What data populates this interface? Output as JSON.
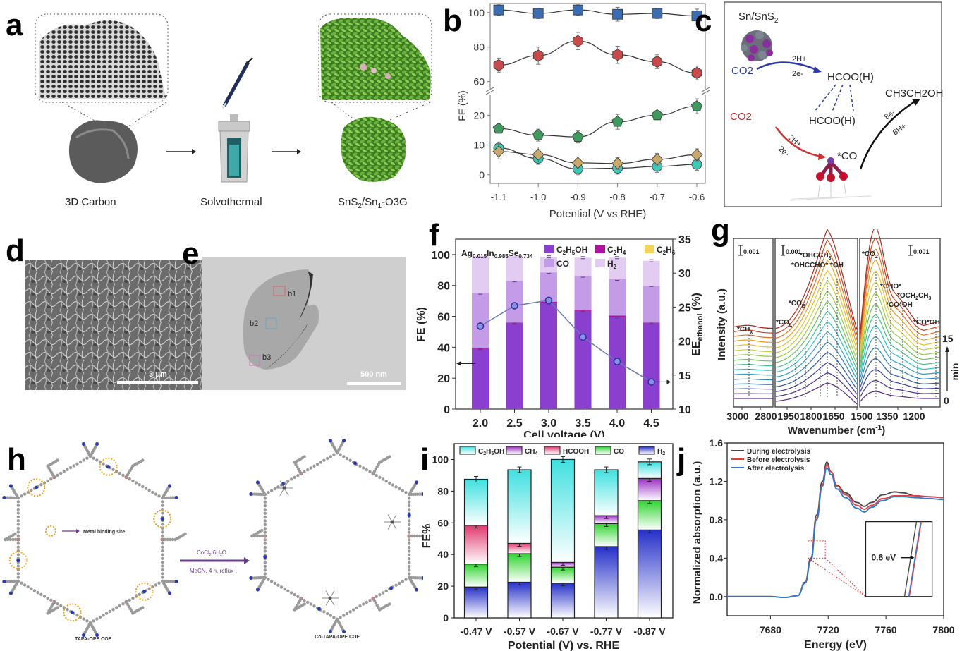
{
  "panels": {
    "a": {
      "label": "a",
      "steps": [
        "3D Carbon",
        "Solvothermal",
        "SnS2/Sn1-O3G"
      ],
      "step3_parts": {
        "pre": "SnS",
        "sub1": "2",
        "mid": "/Sn",
        "sub2": "1",
        "post": "-O3G"
      }
    },
    "c": {
      "label": "c",
      "catalyst": {
        "pre": "Sn/SnS",
        "sub": "2"
      },
      "labels": {
        "co2_top": "CO2",
        "h_top": "2H+",
        "e_top": "2e-",
        "hcooh_top": "HCOO(H)",
        "ethanol": "CH3CH2OH",
        "co2_bottom": "CO2",
        "hcooh_mid": "HCOO(H)",
        "e8": "8e-",
        "h8": "8H+",
        "h_bottom": "2H+",
        "e_bottom": "2e-",
        "co_star": "*CO"
      }
    },
    "d": {
      "label": "d",
      "scale_bar": "3 μm"
    },
    "e": {
      "label": "e",
      "scale_bar": "500 nm",
      "regions": [
        "b1",
        "b2",
        "b3"
      ]
    },
    "h": {
      "label": "h",
      "legend": "Metal binding site",
      "reagent": "CoCl2.6H2O",
      "reagent_parts": {
        "pre": "CoCl",
        "sub1": "2",
        "mid": ".6H",
        "sub2": "2",
        "post": "O"
      },
      "conditions": "MeCN, 4 h, reflux",
      "left_name": "TAPA-OPE COF",
      "right_name": "Co-TAPA-OPE COF"
    }
  },
  "chart_data": [
    {
      "panel": "b",
      "type": "line",
      "label": "b",
      "xlabel": "Potential (V vs RHE)",
      "ylabel": "FE (%)",
      "x": [
        -1.1,
        -1.0,
        -0.9,
        -0.8,
        -0.7,
        -0.6
      ],
      "x_ticks": [
        "-1.1",
        "-1.0",
        "-0.9",
        "-0.8",
        "-0.7",
        "-0.6"
      ],
      "xlim": [
        -1.14,
        -0.56
      ],
      "y_ticks_lower": [
        "0",
        "10",
        "20"
      ],
      "y_ticks_upper": [
        "60",
        "80",
        "100"
      ],
      "ylim_lower": [
        -1,
        26
      ],
      "ylim_upper": [
        57,
        104
      ],
      "axis_break": true,
      "series": [
        {
          "name": "square",
          "marker": "square",
          "color": "#3b6db3",
          "values": [
            101.5,
            99.5,
            101.5,
            99,
            99.5,
            98
          ],
          "errors": [
            3,
            3,
            3,
            4,
            3,
            4
          ],
          "segment": "upper"
        },
        {
          "name": "hexagon",
          "marker": "hexagon",
          "color": "#c84a4a",
          "values": [
            69.5,
            75,
            83.5,
            75.5,
            71.5,
            65
          ],
          "errors": [
            4,
            5,
            5,
            5,
            4,
            4
          ],
          "segment": "upper"
        },
        {
          "name": "pentagon",
          "marker": "pentagon",
          "color": "#3e9a5e",
          "values": [
            15.5,
            13.3,
            12.7,
            17.8,
            20,
            23
          ],
          "errors": [
            1.5,
            2,
            2,
            2.5,
            1.5,
            2.5
          ],
          "segment": "lower"
        },
        {
          "name": "circle",
          "marker": "circle",
          "color": "#3cc9b8",
          "values": [
            9,
            5.5,
            2,
            2.2,
            2.8,
            3.5
          ],
          "errors": [
            2,
            2,
            2,
            2,
            2,
            2
          ],
          "segment": "lower"
        },
        {
          "name": "diamond",
          "marker": "diamond",
          "color": "#c8a96a",
          "values": [
            7.8,
            6.8,
            4,
            3.8,
            5.2,
            6.7
          ],
          "errors": [
            2.5,
            2.5,
            2,
            2,
            2,
            2
          ],
          "segment": "lower"
        }
      ]
    },
    {
      "panel": "f",
      "type": "bar",
      "label": "f",
      "stacked": true,
      "annotation": "Ag0.015In0.985Se0.734",
      "annotation_parts": {
        "el1": "Ag",
        "s1": "0.015",
        "el2": "In",
        "s2": "0.985",
        "el3": "Se",
        "s3": "0.734"
      },
      "xlabel": "Cell voltage (V)",
      "ylabel": "FE (%)",
      "ylabel_right": "EEethanol (%)",
      "ylabel_right_parts": {
        "pre": "EE",
        "sub": "ethanol",
        "post": " (%)"
      },
      "categories": [
        "2.0",
        "2.5",
        "3.0",
        "3.5",
        "4.0",
        "4.5"
      ],
      "ylim": [
        0,
        110
      ],
      "y_ticks": [
        "0",
        "20",
        "40",
        "60",
        "80",
        "100"
      ],
      "ylim_right": [
        10,
        35
      ],
      "y_ticks_right": [
        "10",
        "15",
        "20",
        "25",
        "30",
        "35"
      ],
      "legend": [
        {
          "name": "C2H5OH",
          "parts": [
            "C",
            "2",
            "H",
            "5",
            "OH"
          ],
          "color": "#8a3fcf"
        },
        {
          "name": "C2H4",
          "parts": [
            "C",
            "2",
            "H",
            "4",
            ""
          ],
          "color": "#b0119f"
        },
        {
          "name": "C2H6",
          "parts": [
            "C",
            "2",
            "H",
            "6",
            ""
          ],
          "color": "#f3d35a"
        },
        {
          "name": "CO",
          "parts": [
            "CO",
            "",
            "",
            "",
            ""
          ],
          "color": "#c39be6"
        },
        {
          "name": "H2",
          "parts": [
            "H",
            "2",
            "",
            "",
            ""
          ],
          "color": "#e3ccf2"
        }
      ],
      "series": [
        {
          "name": "C2H5OH",
          "color": "#8a3fcf",
          "values": [
            39,
            55.5,
            68.5,
            63.5,
            59.5,
            55.5
          ]
        },
        {
          "name": "C2H4",
          "color": "#b0119f",
          "values": [
            0.5,
            0.5,
            1,
            0.5,
            1,
            0.5
          ]
        },
        {
          "name": "C2H6",
          "color": "#f3d35a",
          "values": [
            0,
            0,
            0,
            0,
            0,
            0
          ]
        },
        {
          "name": "CO",
          "color": "#c39be6",
          "values": [
            35.5,
            27,
            19,
            22,
            23.5,
            24
          ]
        },
        {
          "name": "H2",
          "color": "#e3ccf2",
          "values": [
            24,
            16,
            10,
            12,
            14,
            16
          ]
        }
      ],
      "ee_ethanol": [
        22.2,
        25.2,
        26.0,
        20.6,
        17.0,
        14.0
      ],
      "arrow_left": "left axis",
      "arrow_right": "right axis"
    },
    {
      "panel": "g",
      "type": "line",
      "label": "g",
      "xlabel": "Wavenumber (cm-1)",
      "xlabel_parts": {
        "pre": "Wavenumber (cm",
        "sup": "-1",
        "post": ")"
      },
      "ylabel": "Intensity (a.u.)",
      "x_ticks": [
        "3000",
        "2800",
        "1950",
        "1800",
        "1650",
        "1500",
        "1350",
        "1200"
      ],
      "scale_bars": [
        "0.001",
        "0.001",
        "0.001"
      ],
      "time_labels": {
        "start": "0",
        "end": "15",
        "unit": "min"
      },
      "n_curves": 16,
      "annotations": [
        {
          "text": "*CHx",
          "base": "*CH",
          "sub": "x"
        },
        {
          "text": "*COL",
          "base": "*CO",
          "sub": "L"
        },
        {
          "text": "*COB",
          "base": "*CO",
          "sub": "B"
        },
        {
          "text": "*OHCCHO*",
          "base": "*OHCCHO*",
          "sub": ""
        },
        {
          "text": "*OHCCH3",
          "base": "*OHCCH",
          "sub": "3"
        },
        {
          "text": "*OH",
          "base": "*OH",
          "sub": ""
        },
        {
          "text": "*CO2",
          "base": "*CO",
          "sub": "2"
        },
        {
          "text": "*CHO*",
          "base": "*CHO*",
          "sub": ""
        },
        {
          "text": "*OCH2CH3",
          "base": "*OCH",
          "sub": "2",
          "tail": "CH",
          "sub2": "3"
        },
        {
          "text": "*CO*OH",
          "base": "*CO*OH",
          "sub": ""
        },
        {
          "text": "*CO*OH",
          "base": "*CO*OH",
          "sub": ""
        }
      ]
    },
    {
      "panel": "i",
      "type": "bar",
      "label": "i",
      "stacked": true,
      "xlabel": "Potential (V) vs. RHE",
      "ylabel": "FE%",
      "categories": [
        "-0.47 V",
        "-0.57 V",
        "-0.67 V",
        "-0.77 V",
        "-0.87 V"
      ],
      "ylim": [
        0,
        110
      ],
      "y_ticks": [
        "0",
        "20",
        "40",
        "60",
        "80",
        "100"
      ],
      "legend": [
        {
          "name": "C2H5OH",
          "parts": [
            "C",
            "2",
            "H",
            "5",
            "OH"
          ],
          "color": "#3fe0e0"
        },
        {
          "name": "CH4",
          "parts": [
            "CH",
            "4",
            "",
            "",
            ""
          ],
          "color": "#9b2fc4"
        },
        {
          "name": "HCOOH",
          "parts": [
            "HCOOH",
            "",
            "",
            "",
            ""
          ],
          "color": "#e0386e"
        },
        {
          "name": "CO",
          "parts": [
            "CO",
            "",
            "",
            "",
            ""
          ],
          "color": "#2fd42f"
        },
        {
          "name": "H2",
          "parts": [
            "H",
            "2",
            "",
            "",
            ""
          ],
          "color": "#2630c8"
        }
      ],
      "series": [
        {
          "name": "H2",
          "color": "#2630c8",
          "values": [
            19.5,
            22.5,
            22,
            45,
            55.5
          ]
        },
        {
          "name": "CO",
          "color": "#2fd42f",
          "values": [
            14.5,
            18,
            10,
            14.5,
            18.5
          ]
        },
        {
          "name": "HCOOH",
          "color": "#e0386e",
          "values": [
            24.5,
            6.5,
            0,
            0,
            0
          ]
        },
        {
          "name": "CH4",
          "color": "#9b2fc4",
          "values": [
            0,
            0,
            3,
            5,
            14
          ]
        },
        {
          "name": "C2H5OH",
          "color": "#3fe0e0",
          "values": [
            29,
            46.5,
            65,
            29,
            10.5
          ]
        }
      ]
    },
    {
      "panel": "j",
      "type": "line",
      "label": "j",
      "xlabel": "Energy (eV)",
      "ylabel": "Normalized absorption (a.u.)",
      "xlim": [
        7650,
        7800
      ],
      "ylim": [
        -0.2,
        1.6
      ],
      "x_ticks": [
        "7680",
        "7720",
        "7760",
        "7800"
      ],
      "y_ticks": [
        "0.0",
        "0.4",
        "0.8",
        "1.2",
        "1.6"
      ],
      "legend": [
        {
          "name": "During electrolysis",
          "color": "#444444"
        },
        {
          "name": "Before electrolysis",
          "color": "#e04040"
        },
        {
          "name": "After electrolysis",
          "color": "#2f78d0"
        }
      ],
      "inset_label": "0.6 eV",
      "series": [
        {
          "name": "During electrolysis",
          "color": "#444444",
          "x": [
            7650,
            7680,
            7690,
            7699,
            7704,
            7708,
            7712,
            7716,
            7719,
            7722,
            7726,
            7732,
            7740,
            7745,
            7750,
            7758,
            7766,
            7772,
            7780,
            7790,
            7800
          ],
          "y": [
            0,
            0,
            -0.01,
            0.01,
            0.15,
            0.4,
            0.85,
            1.2,
            1.4,
            1.3,
            1.16,
            1.08,
            0.98,
            0.94,
            0.98,
            1.06,
            1.09,
            1.08,
            1.05,
            1.04,
            1.03
          ]
        },
        {
          "name": "Before electrolysis",
          "color": "#e04040",
          "x": [
            7650,
            7680,
            7690,
            7699,
            7704,
            7708,
            7712,
            7716,
            7719,
            7722,
            7726,
            7732,
            7740,
            7745,
            7750,
            7758,
            7766,
            7772,
            7780,
            7790,
            7800
          ],
          "y": [
            0,
            0,
            -0.01,
            0.01,
            0.14,
            0.38,
            0.82,
            1.17,
            1.37,
            1.3,
            1.15,
            1.06,
            0.95,
            0.91,
            0.95,
            1.02,
            1.05,
            1.05,
            1.05,
            1.04,
            1.03
          ]
        },
        {
          "name": "After electrolysis",
          "color": "#2f78d0",
          "x": [
            7650,
            7680,
            7690,
            7699,
            7704,
            7708,
            7712,
            7716,
            7719,
            7722,
            7726,
            7732,
            7740,
            7745,
            7750,
            7758,
            7766,
            7772,
            7780,
            7790,
            7800
          ],
          "y": [
            0,
            0,
            -0.01,
            0.01,
            0.14,
            0.37,
            0.8,
            1.15,
            1.34,
            1.27,
            1.12,
            1.03,
            0.92,
            0.88,
            0.93,
            1.0,
            1.04,
            1.04,
            1.03,
            1.02,
            1.01
          ]
        }
      ]
    }
  ],
  "colors": {
    "carbon_gray": "#5b5b5b",
    "foliage_green": "#4e8f2a",
    "arrow_purple": "#6a3d8a",
    "orange_ring": "#f0a020"
  }
}
